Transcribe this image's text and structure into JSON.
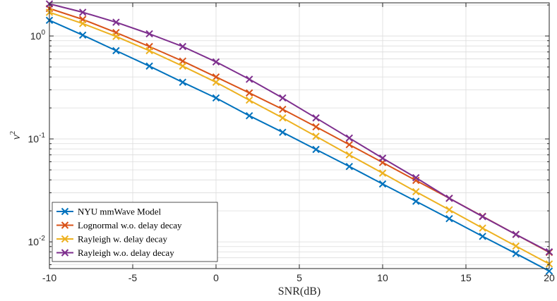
{
  "chart_data": {
    "type": "line",
    "title": "",
    "xlabel": "SNR(dB)",
    "ylabel_base": "ν",
    "ylabel_exp": "2",
    "xscale": "linear",
    "yscale": "log",
    "xlim": [
      -10,
      20
    ],
    "ylim": [
      0.0055,
      2.1
    ],
    "grid": true,
    "legend_position": "bottom-left",
    "x_ticks": [
      -10,
      -5,
      0,
      5,
      10,
      15,
      20
    ],
    "x_tick_labels": [
      "-10",
      "-5",
      "0",
      "5",
      "10",
      "15",
      "20"
    ],
    "y_ticks": [
      {
        "value": 1,
        "base": "10",
        "exp": "0"
      },
      {
        "value": 0.1,
        "base": "10",
        "exp": "-1"
      },
      {
        "value": 0.01,
        "base": "10",
        "exp": "-2"
      }
    ],
    "x": [
      -10,
      -8,
      -6,
      -4,
      -2,
      0,
      2,
      4,
      6,
      8,
      10,
      12,
      14,
      16,
      18,
      20
    ],
    "series": [
      {
        "name": "NYU mmWave Model",
        "color": "#0072BD",
        "marker": "x",
        "values": [
          1.42,
          1.02,
          0.72,
          0.51,
          0.355,
          0.25,
          0.168,
          0.116,
          0.079,
          0.054,
          0.0365,
          0.0248,
          0.0168,
          0.0113,
          0.0077,
          0.0052
        ]
      },
      {
        "name": "Lognormal w.o. delay decay",
        "color": "#D95319",
        "marker": "x",
        "values": [
          1.85,
          1.45,
          1.08,
          0.79,
          0.57,
          0.4,
          0.28,
          0.194,
          0.131,
          0.088,
          0.059,
          0.0395,
          0.0265,
          0.0177,
          0.0118,
          0.0079
        ]
      },
      {
        "name": "Rayleigh w. delay decay",
        "color": "#EDB120",
        "marker": "x",
        "values": [
          1.7,
          1.32,
          0.99,
          0.72,
          0.51,
          0.355,
          0.238,
          0.16,
          0.106,
          0.07,
          0.0465,
          0.0307,
          0.0205,
          0.0136,
          0.0091,
          0.0061
        ]
      },
      {
        "name": "Rayleigh w.o. delay decay",
        "color": "#7E2F8E",
        "marker": "x",
        "values": [
          2.05,
          1.7,
          1.36,
          1.05,
          0.79,
          0.56,
          0.38,
          0.25,
          0.16,
          0.102,
          0.065,
          0.042,
          0.0265,
          0.0176,
          0.0118,
          0.008
        ]
      }
    ]
  }
}
